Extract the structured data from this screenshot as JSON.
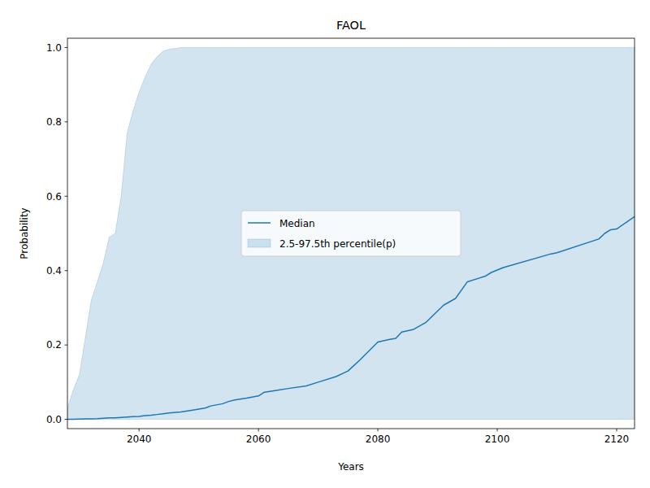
{
  "chart_data": {
    "type": "line",
    "title": "FAOL",
    "x_label": "Years",
    "y_label": "Probability",
    "x": [
      2028,
      2029,
      2030,
      2031,
      2032,
      2033,
      2034,
      2035,
      2036,
      2037,
      2038,
      2039,
      2040,
      2041,
      2042,
      2043,
      2044,
      2045,
      2047,
      2049,
      2051,
      2052,
      2054,
      2055,
      2056,
      2058,
      2060,
      2061,
      2063,
      2065,
      2068,
      2070,
      2073,
      2075,
      2077,
      2080,
      2082,
      2083,
      2084,
      2086,
      2088,
      2091,
      2093,
      2095,
      2097,
      2098,
      2099,
      2101,
      2109,
      2110,
      2117,
      2118,
      2119,
      2120,
      2123
    ],
    "series": [
      {
        "name": "Median",
        "type": "line",
        "color": "#1f77b4",
        "values": [
          0,
          0,
          0.0005,
          0.001,
          0.0015,
          0.002,
          0.003,
          0.004,
          0.004,
          0.005,
          0.006,
          0.007,
          0.008,
          0.01,
          0.011,
          0.013,
          0.015,
          0.017,
          0.02,
          0.025,
          0.03,
          0.036,
          0.042,
          0.048,
          0.052,
          0.057,
          0.063,
          0.073,
          0.078,
          0.083,
          0.09,
          0.1,
          0.115,
          0.13,
          0.16,
          0.208,
          0.215,
          0.218,
          0.235,
          0.242,
          0.26,
          0.307,
          0.325,
          0.37,
          0.38,
          0.385,
          0.395,
          0.408,
          0.445,
          0.448,
          0.485,
          0.5,
          0.51,
          0.512,
          0.545
        ]
      },
      {
        "name": "2.5-97.5th percentile(p)",
        "type": "band",
        "color": "#1f77b4",
        "lower": [
          0,
          0,
          0,
          0,
          0,
          0,
          0,
          0,
          0,
          0,
          0,
          0,
          0,
          0,
          0,
          0,
          0,
          0,
          0,
          0,
          0,
          0,
          0,
          0,
          0,
          0,
          0,
          0,
          0,
          0,
          0,
          0,
          0,
          0,
          0,
          0,
          0,
          0,
          0,
          0,
          0,
          0,
          0,
          0,
          0,
          0,
          0,
          0,
          0,
          0,
          0,
          0,
          0,
          0,
          0
        ],
        "upper": [
          0.03,
          0.08,
          0.12,
          0.22,
          0.32,
          0.37,
          0.42,
          0.49,
          0.5,
          0.6,
          0.77,
          0.83,
          0.88,
          0.92,
          0.955,
          0.975,
          0.99,
          0.995,
          1,
          1,
          1,
          1,
          1,
          1,
          1,
          1,
          1,
          1,
          1,
          1,
          1,
          1,
          1,
          1,
          1,
          1,
          1,
          1,
          1,
          1,
          1,
          1,
          1,
          1,
          1,
          1,
          1,
          1,
          1,
          1,
          1,
          1,
          1,
          1,
          1
        ]
      }
    ],
    "xlim": [
      2028,
      2123
    ],
    "ylim": [
      -0.025,
      1.025
    ],
    "xticks": [
      2040,
      2060,
      2080,
      2100,
      2120
    ],
    "yticks": [
      {
        "value": 0,
        "label": "0.0"
      },
      0.2,
      0.4,
      0.6,
      0.8,
      {
        "value": 1,
        "label": "1.0"
      }
    ],
    "grid": false,
    "legend": "center"
  }
}
